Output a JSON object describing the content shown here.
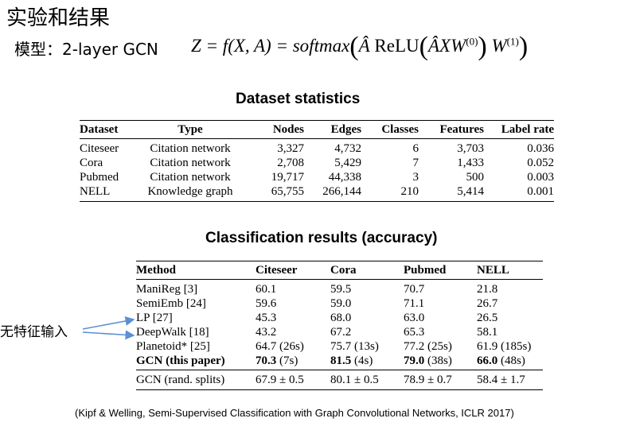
{
  "slide_title": "实验和结果",
  "model_label": "模型：2-layer GCN",
  "formula": {
    "lhs": "Z = f(X, A) = softmax",
    "a_hat": "Â",
    "relu": "ReLU",
    "inner": "ÂXW",
    "w0_sup": "(0)",
    "w1": "W",
    "w1_sup": "(1)"
  },
  "dataset_table": {
    "title": "Dataset statistics",
    "columns": [
      "Dataset",
      "Type",
      "Nodes",
      "Edges",
      "Classes",
      "Features",
      "Label rate"
    ],
    "rows": [
      [
        "Citeseer",
        "Citation network",
        "3,327",
        "4,732",
        "6",
        "3,703",
        "0.036"
      ],
      [
        "Cora",
        "Citation network",
        "2,708",
        "5,429",
        "7",
        "1,433",
        "0.052"
      ],
      [
        "Pubmed",
        "Citation network",
        "19,717",
        "44,338",
        "3",
        "500",
        "0.003"
      ],
      [
        "NELL",
        "Knowledge graph",
        "65,755",
        "266,144",
        "210",
        "5,414",
        "0.001"
      ]
    ]
  },
  "results_table": {
    "title": "Classification results (accuracy)",
    "columns": [
      "Method",
      "Citeseer",
      "Cora",
      "Pubmed",
      "NELL"
    ],
    "rows": [
      [
        "ManiReg [3]",
        "60.1",
        "59.5",
        "70.7",
        "21.8"
      ],
      [
        "SemiEmb [24]",
        "59.6",
        "59.0",
        "71.1",
        "26.7"
      ],
      [
        "LP [27]",
        "45.3",
        "68.0",
        "63.0",
        "26.5"
      ],
      [
        "DeepWalk [18]",
        "43.2",
        "67.2",
        "65.3",
        "58.1"
      ],
      [
        "Planetoid* [25]",
        "64.7 (26s)",
        "75.7 (13s)",
        "77.2 (25s)",
        "61.9 (185s)"
      ]
    ],
    "gcn_row": {
      "method": "GCN (this paper)",
      "cells": [
        {
          "value": "70.3",
          "time": " (7s)"
        },
        {
          "value": "81.5",
          "time": " (4s)"
        },
        {
          "value": "79.0",
          "time": " (38s)"
        },
        {
          "value": "66.0",
          "time": " (48s)"
        }
      ]
    },
    "rand_row": [
      "GCN (rand. splits)",
      "67.9 ± 0.5",
      "80.1 ± 0.5",
      "78.9 ± 0.7",
      "58.4 ± 1.7"
    ]
  },
  "annotation": "无特征输入",
  "arrow_color": "#5b8fd6",
  "citation": "(Kipf & Welling, Semi-Supervised Classification with Graph Convolutional Networks, ICLR 2017)"
}
